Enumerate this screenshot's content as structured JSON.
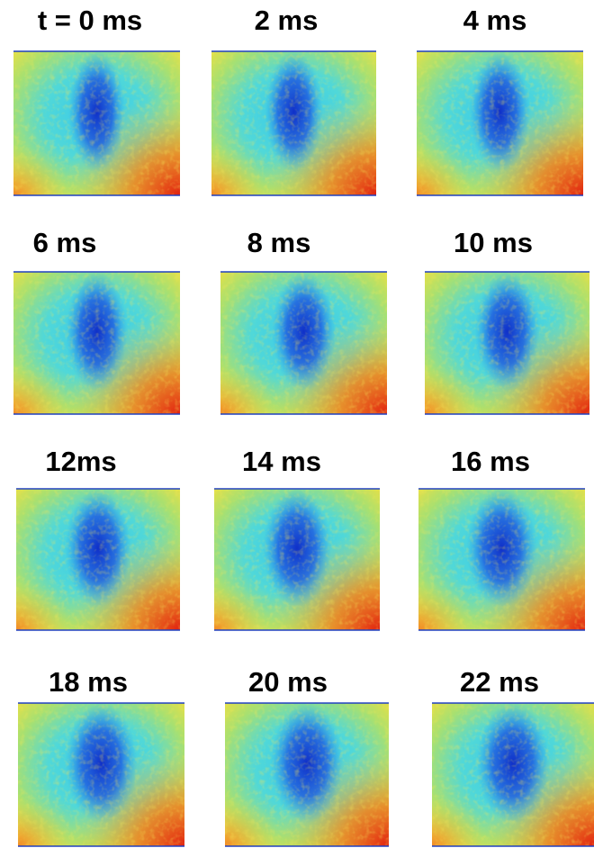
{
  "panels": [
    {
      "label": "t = 0 ms"
    },
    {
      "label": "2 ms"
    },
    {
      "label": "4 ms"
    },
    {
      "label": "6 ms"
    },
    {
      "label": "8 ms"
    },
    {
      "label": "10 ms"
    },
    {
      "label": "12ms"
    },
    {
      "label": "14 ms"
    },
    {
      "label": "16 ms"
    },
    {
      "label": "18 ms"
    },
    {
      "label": "20 ms"
    },
    {
      "label": "22 ms"
    }
  ]
}
